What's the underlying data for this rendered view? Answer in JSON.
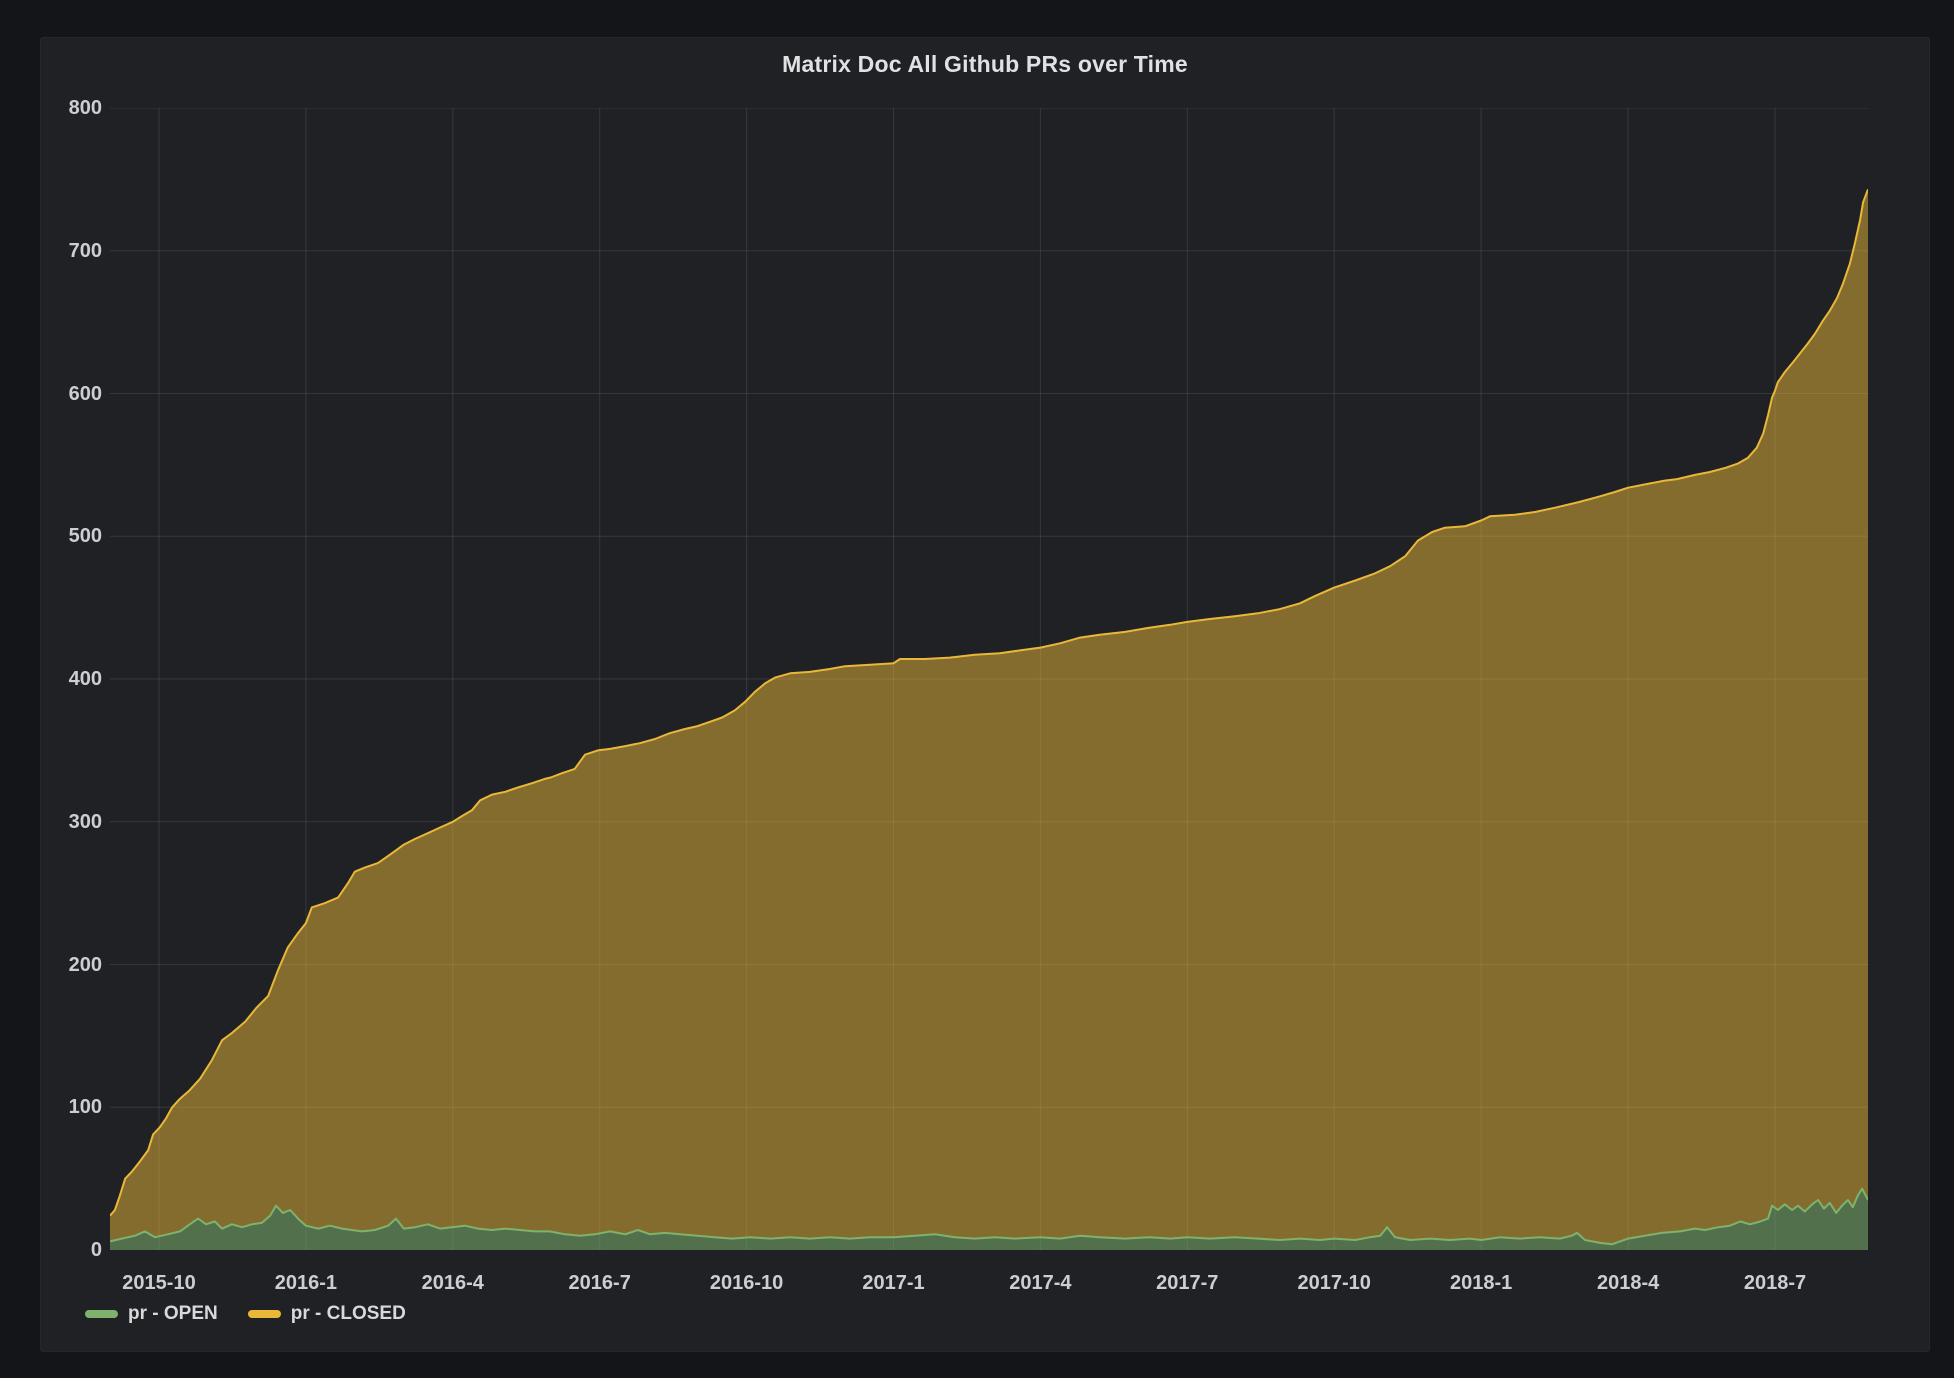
{
  "panel": {
    "title": "Matrix Doc All Github PRs over Time"
  },
  "legend": [
    {
      "label": "pr - OPEN",
      "color": "#7eb26d"
    },
    {
      "label": "pr - CLOSED",
      "color": "#eab839"
    }
  ],
  "colors": {
    "page_background": "#141519",
    "panel_background": "#1f2124",
    "grid": "rgba(255,255,255,0.10)",
    "open_line": "#7eb26d",
    "open_fill": "rgba(126,178,109,0.55)",
    "closed_line": "#eab839",
    "closed_fill": "rgba(234,184,57,0.50)",
    "axis_text": "#cdced1"
  },
  "chart_data": {
    "type": "area",
    "stacked": true,
    "title": "Matrix Doc All Github PRs over Time",
    "xlabel": "",
    "ylabel": "",
    "ylim": [
      0,
      800
    ],
    "y_ticks": [
      0,
      100,
      200,
      300,
      400,
      500,
      600,
      700,
      800
    ],
    "x_unit": "months since 2015-09",
    "x_range": [
      0,
      35.9
    ],
    "x_ticks": [
      {
        "t": 1,
        "label": "2015-10"
      },
      {
        "t": 4,
        "label": "2016-1"
      },
      {
        "t": 7,
        "label": "2016-4"
      },
      {
        "t": 10,
        "label": "2016-7"
      },
      {
        "t": 13,
        "label": "2016-10"
      },
      {
        "t": 16,
        "label": "2017-1"
      },
      {
        "t": 19,
        "label": "2017-4"
      },
      {
        "t": 22,
        "label": "2017-7"
      },
      {
        "t": 25,
        "label": "2017-10"
      },
      {
        "t": 28,
        "label": "2018-1"
      },
      {
        "t": 31,
        "label": "2018-4"
      },
      {
        "t": 34,
        "label": "2018-7"
      }
    ],
    "note": "Stacked area: OPEN drawn from baseline; CLOSED points below are the stacked tops (OPEN + CLOSED cumulative totals).",
    "series": [
      {
        "name": "pr - OPEN",
        "color": "#7eb26d",
        "points": [
          [
            0,
            6
          ],
          [
            0.24,
            8
          ],
          [
            0.51,
            10
          ],
          [
            0.71,
            13
          ],
          [
            0.92,
            9
          ],
          [
            1.18,
            11
          ],
          [
            1.43,
            13
          ],
          [
            1.63,
            18
          ],
          [
            1.8,
            22
          ],
          [
            1.96,
            18
          ],
          [
            2.14,
            20
          ],
          [
            2.29,
            15
          ],
          [
            2.49,
            18
          ],
          [
            2.7,
            16
          ],
          [
            2.9,
            18
          ],
          [
            3.1,
            19
          ],
          [
            3.27,
            24
          ],
          [
            3.39,
            31
          ],
          [
            3.53,
            26
          ],
          [
            3.68,
            28
          ],
          [
            3.84,
            22
          ],
          [
            4,
            17
          ],
          [
            4.25,
            15
          ],
          [
            4.49,
            17
          ],
          [
            4.74,
            15
          ],
          [
            4.94,
            14
          ],
          [
            5.15,
            13
          ],
          [
            5.41,
            14
          ],
          [
            5.68,
            17
          ],
          [
            5.84,
            22
          ],
          [
            6,
            15
          ],
          [
            6.23,
            16
          ],
          [
            6.49,
            18
          ],
          [
            6.74,
            15
          ],
          [
            6.98,
            16
          ],
          [
            7.25,
            17
          ],
          [
            7.51,
            15
          ],
          [
            7.8,
            14
          ],
          [
            8.07,
            15
          ],
          [
            8.37,
            14
          ],
          [
            8.68,
            13
          ],
          [
            8.98,
            13
          ],
          [
            9.29,
            11
          ],
          [
            9.6,
            10
          ],
          [
            9.9,
            11
          ],
          [
            10.21,
            13
          ],
          [
            10.52,
            11
          ],
          [
            10.78,
            14
          ],
          [
            11.03,
            11
          ],
          [
            11.33,
            12
          ],
          [
            11.64,
            11
          ],
          [
            12,
            10
          ],
          [
            12.35,
            9
          ],
          [
            12.7,
            8
          ],
          [
            13.07,
            9
          ],
          [
            13.48,
            8
          ],
          [
            13.89,
            9
          ],
          [
            14.29,
            8
          ],
          [
            14.7,
            9
          ],
          [
            15.11,
            8
          ],
          [
            15.52,
            9
          ],
          [
            16,
            9
          ],
          [
            16.44,
            10
          ],
          [
            16.85,
            11
          ],
          [
            17.25,
            9
          ],
          [
            17.66,
            8
          ],
          [
            18.07,
            9
          ],
          [
            18.48,
            8
          ],
          [
            19,
            9
          ],
          [
            19.4,
            8
          ],
          [
            19.81,
            10
          ],
          [
            20.21,
            9
          ],
          [
            20.73,
            8
          ],
          [
            21.24,
            9
          ],
          [
            21.65,
            8
          ],
          [
            22,
            9
          ],
          [
            22.46,
            8
          ],
          [
            22.97,
            9
          ],
          [
            23.44,
            8
          ],
          [
            23.89,
            7
          ],
          [
            24.3,
            8
          ],
          [
            24.71,
            7
          ],
          [
            25,
            8
          ],
          [
            25.43,
            7
          ],
          [
            25.73,
            9
          ],
          [
            25.94,
            10
          ],
          [
            26.08,
            16
          ],
          [
            26.24,
            9
          ],
          [
            26.55,
            7
          ],
          [
            26.96,
            8
          ],
          [
            27.36,
            7
          ],
          [
            27.77,
            8
          ],
          [
            28,
            7
          ],
          [
            28.39,
            9
          ],
          [
            28.79,
            8
          ],
          [
            29.2,
            9
          ],
          [
            29.61,
            8
          ],
          [
            29.85,
            10
          ],
          [
            29.96,
            12
          ],
          [
            30.12,
            7
          ],
          [
            30.43,
            5
          ],
          [
            30.67,
            4
          ],
          [
            31,
            8
          ],
          [
            31.35,
            10
          ],
          [
            31.69,
            12
          ],
          [
            32.06,
            13
          ],
          [
            32.37,
            15
          ],
          [
            32.57,
            14
          ],
          [
            32.84,
            16
          ],
          [
            33.08,
            17
          ],
          [
            33.29,
            20
          ],
          [
            33.49,
            18
          ],
          [
            33.7,
            20
          ],
          [
            33.86,
            22
          ],
          [
            33.94,
            31
          ],
          [
            34.06,
            28
          ],
          [
            34.2,
            32
          ],
          [
            34.35,
            28
          ],
          [
            34.47,
            31
          ],
          [
            34.61,
            27
          ],
          [
            34.76,
            32
          ],
          [
            34.88,
            35
          ],
          [
            35,
            29
          ],
          [
            35.12,
            33
          ],
          [
            35.25,
            26
          ],
          [
            35.37,
            31
          ],
          [
            35.49,
            35
          ],
          [
            35.59,
            30
          ],
          [
            35.69,
            38
          ],
          [
            35.78,
            43
          ],
          [
            35.9,
            35
          ]
        ]
      },
      {
        "name": "pr - CLOSED",
        "color": "#eab839",
        "points": [
          [
            0,
            24
          ],
          [
            0.1,
            28
          ],
          [
            0.2,
            38
          ],
          [
            0.31,
            50
          ],
          [
            0.45,
            55
          ],
          [
            0.61,
            62
          ],
          [
            0.78,
            70
          ],
          [
            0.88,
            81
          ],
          [
            1.02,
            86
          ],
          [
            1.14,
            92
          ],
          [
            1.27,
            100
          ],
          [
            1.43,
            106
          ],
          [
            1.63,
            112
          ],
          [
            1.84,
            120
          ],
          [
            2.08,
            133
          ],
          [
            2.29,
            147
          ],
          [
            2.49,
            152
          ],
          [
            2.76,
            160
          ],
          [
            3,
            170
          ],
          [
            3.23,
            178
          ],
          [
            3.43,
            196
          ],
          [
            3.63,
            212
          ],
          [
            3.84,
            222
          ],
          [
            4,
            229
          ],
          [
            4.12,
            240
          ],
          [
            4.39,
            243
          ],
          [
            4.66,
            247
          ],
          [
            4.86,
            257
          ],
          [
            5,
            265
          ],
          [
            5.21,
            268
          ],
          [
            5.47,
            271
          ],
          [
            5.72,
            277
          ],
          [
            5.88,
            281
          ],
          [
            6,
            284
          ],
          [
            6.23,
            288
          ],
          [
            6.49,
            292
          ],
          [
            6.74,
            296
          ],
          [
            7,
            300
          ],
          [
            7.19,
            304
          ],
          [
            7.39,
            308
          ],
          [
            7.56,
            315
          ],
          [
            7.8,
            319
          ],
          [
            8.07,
            321
          ],
          [
            8.33,
            324
          ],
          [
            8.62,
            327
          ],
          [
            8.88,
            330
          ],
          [
            9,
            331
          ],
          [
            9.23,
            334
          ],
          [
            9.49,
            337
          ],
          [
            9.7,
            347
          ],
          [
            9.96,
            350
          ],
          [
            10.21,
            351
          ],
          [
            10.52,
            353
          ],
          [
            10.82,
            355
          ],
          [
            11.13,
            358
          ],
          [
            11.43,
            362
          ],
          [
            11.74,
            365
          ],
          [
            12,
            367
          ],
          [
            12.25,
            370
          ],
          [
            12.5,
            373
          ],
          [
            12.76,
            378
          ],
          [
            12.97,
            384
          ],
          [
            13.17,
            391
          ],
          [
            13.38,
            397
          ],
          [
            13.58,
            401
          ],
          [
            13.89,
            404
          ],
          [
            14.29,
            405
          ],
          [
            14.7,
            407
          ],
          [
            15.01,
            409
          ],
          [
            15.52,
            410
          ],
          [
            16,
            411
          ],
          [
            16.13,
            414
          ],
          [
            16.64,
            414
          ],
          [
            17.15,
            415
          ],
          [
            17.66,
            417
          ],
          [
            18.17,
            418
          ],
          [
            18.58,
            420
          ],
          [
            19,
            422
          ],
          [
            19.4,
            425
          ],
          [
            19.81,
            429
          ],
          [
            20.21,
            431
          ],
          [
            20.73,
            433
          ],
          [
            21.24,
            436
          ],
          [
            21.65,
            438
          ],
          [
            22,
            440
          ],
          [
            22.46,
            442
          ],
          [
            22.97,
            444
          ],
          [
            23.44,
            446
          ],
          [
            23.89,
            449
          ],
          [
            24.3,
            453
          ],
          [
            24.6,
            458
          ],
          [
            25,
            464
          ],
          [
            25.43,
            469
          ],
          [
            25.83,
            474
          ],
          [
            26.14,
            479
          ],
          [
            26.45,
            486
          ],
          [
            26.71,
            497
          ],
          [
            27,
            503
          ],
          [
            27.26,
            506
          ],
          [
            27.67,
            507
          ],
          [
            28,
            511
          ],
          [
            28.18,
            514
          ],
          [
            28.69,
            515
          ],
          [
            29.1,
            517
          ],
          [
            29.51,
            520
          ],
          [
            30,
            524
          ],
          [
            30.43,
            528
          ],
          [
            30.73,
            531
          ],
          [
            31,
            534
          ],
          [
            31.45,
            537
          ],
          [
            31.75,
            539
          ],
          [
            32,
            540
          ],
          [
            32.37,
            543
          ],
          [
            32.67,
            545
          ],
          [
            33,
            548
          ],
          [
            33.25,
            551
          ],
          [
            33.45,
            555
          ],
          [
            33.63,
            562
          ],
          [
            33.76,
            572
          ],
          [
            33.86,
            585
          ],
          [
            33.94,
            597
          ],
          [
            34,
            602
          ],
          [
            34.06,
            608
          ],
          [
            34.2,
            615
          ],
          [
            34.37,
            622
          ],
          [
            34.51,
            628
          ],
          [
            34.67,
            635
          ],
          [
            34.82,
            642
          ],
          [
            34.98,
            651
          ],
          [
            35.12,
            658
          ],
          [
            35.27,
            667
          ],
          [
            35.39,
            677
          ],
          [
            35.53,
            691
          ],
          [
            35.63,
            705
          ],
          [
            35.74,
            722
          ],
          [
            35.8,
            734
          ],
          [
            35.9,
            743
          ]
        ]
      }
    ]
  }
}
